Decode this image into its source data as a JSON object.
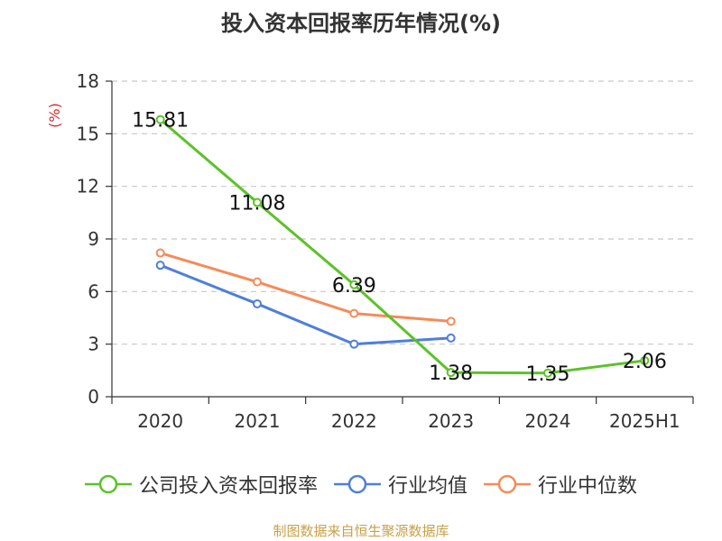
{
  "title": "投入资本回报率历年情况(%)",
  "source": "制图数据来自恒生聚源数据库",
  "colors": {
    "company": "#5cc229",
    "industry_avg": "#4f7fd8",
    "industry_median": "#f58b5a",
    "grid": "#c8c8c8",
    "axis": "#333333",
    "ylabel": "#d42c2c"
  },
  "chart_data": {
    "type": "line",
    "title": "投入资本回报率历年情况(%)",
    "xlabel": "",
    "ylabel": "(%)",
    "categories": [
      "2020",
      "2021",
      "2022",
      "2023",
      "2024",
      "2025H1"
    ],
    "ylim": [
      0,
      18
    ],
    "yticks": [
      0,
      3,
      6,
      9,
      12,
      15,
      18
    ],
    "grid": true,
    "legend_position": "bottom",
    "series": [
      {
        "name": "公司投入资本回报率",
        "color": "#5cc229",
        "values": [
          15.81,
          11.08,
          6.39,
          1.38,
          1.35,
          2.06
        ],
        "labels": [
          "15.81",
          "11.08",
          "6.39",
          "1.38",
          "1.35",
          "2.06"
        ]
      },
      {
        "name": "行业均值",
        "color": "#4f7fd8",
        "values": [
          7.5,
          5.3,
          3.0,
          3.35,
          null,
          null
        ]
      },
      {
        "name": "行业中位数",
        "color": "#f58b5a",
        "values": [
          8.2,
          6.55,
          4.75,
          4.3,
          null,
          null
        ]
      }
    ]
  }
}
